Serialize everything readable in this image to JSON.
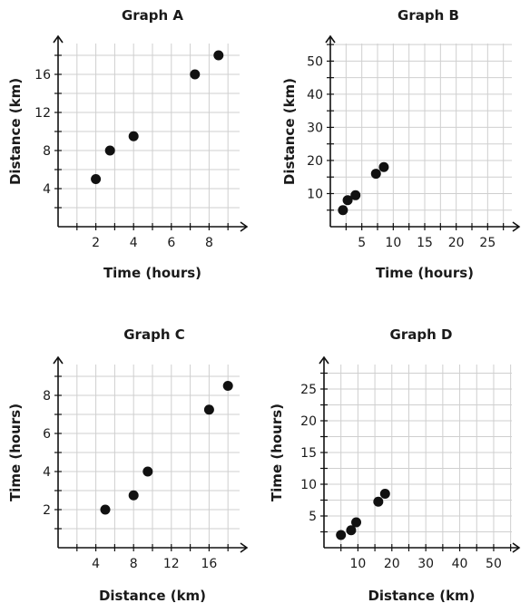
{
  "chart_data": [
    {
      "type": "scatter",
      "title": "Graph A",
      "xlabel": "Time (hours)",
      "ylabel": "Distance (km)",
      "xlim": [
        0,
        10
      ],
      "ylim": [
        0,
        20
      ],
      "x_ticks": [
        2,
        4,
        6,
        8
      ],
      "y_ticks": [
        4,
        8,
        12,
        16
      ],
      "grid": true,
      "points": [
        {
          "x": 2,
          "y": 5
        },
        {
          "x": 2.75,
          "y": 8
        },
        {
          "x": 4,
          "y": 9.5
        },
        {
          "x": 7.25,
          "y": 16
        },
        {
          "x": 8.5,
          "y": 18
        }
      ]
    },
    {
      "type": "scatter",
      "title": "Graph B",
      "xlabel": "Time (hours)",
      "ylabel": "Distance (km)",
      "xlim": [
        0,
        30
      ],
      "ylim": [
        0,
        57.5
      ],
      "x_ticks": [
        5,
        10,
        15,
        20,
        25
      ],
      "y_ticks": [
        10,
        20,
        30,
        40,
        50
      ],
      "grid": true,
      "points": [
        {
          "x": 2,
          "y": 5
        },
        {
          "x": 2.75,
          "y": 8
        },
        {
          "x": 4,
          "y": 9.5
        },
        {
          "x": 7.25,
          "y": 16
        },
        {
          "x": 8.5,
          "y": 18
        }
      ]
    },
    {
      "type": "scatter",
      "title": "Graph C",
      "xlabel": "Distance (km)",
      "ylabel": "Time (hours)",
      "xlim": [
        0,
        20
      ],
      "ylim": [
        0,
        10
      ],
      "x_ticks": [
        4,
        8,
        12,
        16
      ],
      "y_ticks": [
        2,
        4,
        6,
        8
      ],
      "grid": true,
      "points": [
        {
          "x": 5,
          "y": 2
        },
        {
          "x": 8,
          "y": 2.75
        },
        {
          "x": 9.5,
          "y": 4
        },
        {
          "x": 16,
          "y": 7.25
        },
        {
          "x": 18,
          "y": 8.5
        }
      ]
    },
    {
      "type": "scatter",
      "title": "Graph D",
      "xlabel": "Distance (km)",
      "ylabel": "Time (hours)",
      "xlim": [
        0,
        57.5
      ],
      "ylim": [
        0,
        30
      ],
      "x_ticks": [
        10,
        20,
        30,
        40,
        50
      ],
      "y_ticks": [
        5,
        10,
        15,
        20,
        25
      ],
      "grid": true,
      "points": [
        {
          "x": 5,
          "y": 2
        },
        {
          "x": 8,
          "y": 2.75
        },
        {
          "x": 9.5,
          "y": 4
        },
        {
          "x": 16,
          "y": 7.25
        },
        {
          "x": 18,
          "y": 8.5
        }
      ]
    }
  ]
}
